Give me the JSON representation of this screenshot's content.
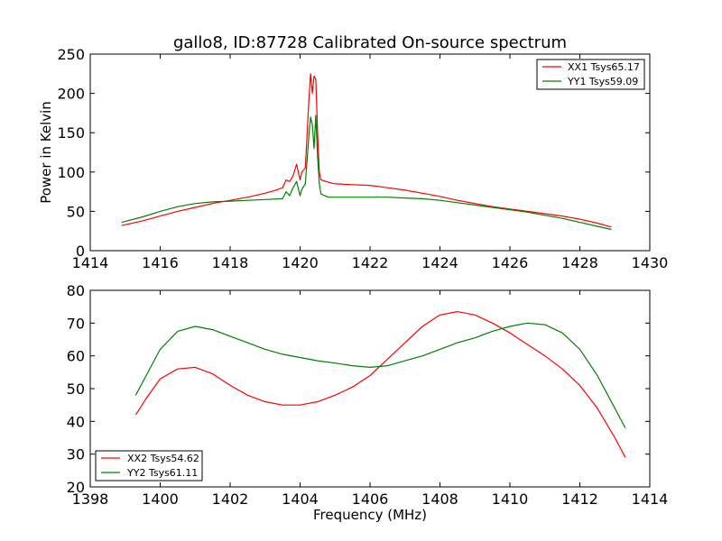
{
  "figure": {
    "title": "gallo8, ID:87728 Calibrated On-source spectrum",
    "colors": {
      "red": "#ff0000",
      "green": "#008000",
      "axes": "#000000",
      "background": "#ffffff"
    }
  },
  "chart_data": [
    {
      "type": "line",
      "title": "gallo8, ID:87728 Calibrated On-source spectrum",
      "xlabel": "",
      "ylabel": "Power in Kelvin",
      "xlim": [
        1414,
        1430
      ],
      "ylim": [
        0,
        250
      ],
      "xticks": [
        1414,
        1416,
        1418,
        1420,
        1422,
        1424,
        1426,
        1428,
        1430
      ],
      "yticks": [
        0,
        50,
        100,
        150,
        200,
        250
      ],
      "grid": false,
      "legend_position": "top-right",
      "series": [
        {
          "name": "XX1 Tsys65.17",
          "color": "#ff0000",
          "points": [
            [
              1414.9,
              32
            ],
            [
              1415.5,
              38
            ],
            [
              1416.0,
              44
            ],
            [
              1416.5,
              50
            ],
            [
              1417.0,
              55
            ],
            [
              1417.5,
              60
            ],
            [
              1418.0,
              64
            ],
            [
              1418.5,
              68
            ],
            [
              1419.0,
              73
            ],
            [
              1419.3,
              77
            ],
            [
              1419.5,
              80
            ],
            [
              1419.6,
              90
            ],
            [
              1419.7,
              88
            ],
            [
              1419.8,
              95
            ],
            [
              1419.9,
              110
            ],
            [
              1420.0,
              90
            ],
            [
              1420.05,
              100
            ],
            [
              1420.15,
              105
            ],
            [
              1420.25,
              190
            ],
            [
              1420.3,
              225
            ],
            [
              1420.35,
              200
            ],
            [
              1420.4,
              222
            ],
            [
              1420.45,
              218
            ],
            [
              1420.5,
              150
            ],
            [
              1420.55,
              100
            ],
            [
              1420.6,
              90
            ],
            [
              1420.8,
              87
            ],
            [
              1421.0,
              85
            ],
            [
              1421.5,
              84
            ],
            [
              1422.0,
              83
            ],
            [
              1422.5,
              80
            ],
            [
              1423.0,
              77
            ],
            [
              1423.5,
              73
            ],
            [
              1424.0,
              69
            ],
            [
              1424.5,
              64
            ],
            [
              1425.0,
              60
            ],
            [
              1425.5,
              56
            ],
            [
              1426.0,
              53
            ],
            [
              1426.5,
              50
            ],
            [
              1427.0,
              47
            ],
            [
              1427.5,
              44
            ],
            [
              1428.0,
              40
            ],
            [
              1428.5,
              35
            ],
            [
              1428.9,
              30
            ]
          ]
        },
        {
          "name": "YY1 Tsys59.09",
          "color": "#008000",
          "points": [
            [
              1414.9,
              36
            ],
            [
              1415.5,
              43
            ],
            [
              1416.0,
              50
            ],
            [
              1416.5,
              56
            ],
            [
              1417.0,
              60
            ],
            [
              1417.5,
              62
            ],
            [
              1418.0,
              63
            ],
            [
              1418.5,
              64
            ],
            [
              1419.0,
              65
            ],
            [
              1419.5,
              66
            ],
            [
              1419.6,
              75
            ],
            [
              1419.7,
              70
            ],
            [
              1419.8,
              80
            ],
            [
              1419.9,
              88
            ],
            [
              1420.0,
              70
            ],
            [
              1420.05,
              78
            ],
            [
              1420.15,
              85
            ],
            [
              1420.25,
              145
            ],
            [
              1420.3,
              170
            ],
            [
              1420.35,
              160
            ],
            [
              1420.4,
              130
            ],
            [
              1420.45,
              172
            ],
            [
              1420.5,
              120
            ],
            [
              1420.55,
              85
            ],
            [
              1420.6,
              72
            ],
            [
              1420.8,
              68
            ],
            [
              1421.0,
              68
            ],
            [
              1421.5,
              68
            ],
            [
              1422.0,
              68
            ],
            [
              1422.5,
              68
            ],
            [
              1423.0,
              67
            ],
            [
              1423.5,
              66
            ],
            [
              1424.0,
              64
            ],
            [
              1424.5,
              61
            ],
            [
              1425.0,
              58
            ],
            [
              1425.5,
              55
            ],
            [
              1426.0,
              52
            ],
            [
              1426.5,
              49
            ],
            [
              1427.0,
              45
            ],
            [
              1427.5,
              41
            ],
            [
              1428.0,
              36
            ],
            [
              1428.5,
              31
            ],
            [
              1428.9,
              27
            ]
          ]
        }
      ]
    },
    {
      "type": "line",
      "title": "",
      "xlabel": "Frequency (MHz)",
      "ylabel": "",
      "xlim": [
        1398,
        1414
      ],
      "ylim": [
        20,
        80
      ],
      "xticks": [
        1398,
        1400,
        1402,
        1404,
        1406,
        1408,
        1410,
        1412,
        1414
      ],
      "yticks": [
        20,
        30,
        40,
        50,
        60,
        70,
        80
      ],
      "grid": false,
      "legend_position": "bottom-left",
      "series": [
        {
          "name": "XX2 Tsys54.62",
          "color": "#ff0000",
          "points": [
            [
              1399.3,
              42
            ],
            [
              1399.6,
              47
            ],
            [
              1400.0,
              53
            ],
            [
              1400.5,
              56
            ],
            [
              1401.0,
              56.5
            ],
            [
              1401.5,
              54.5
            ],
            [
              1402.0,
              51
            ],
            [
              1402.5,
              48
            ],
            [
              1403.0,
              46
            ],
            [
              1403.5,
              45
            ],
            [
              1404.0,
              45
            ],
            [
              1404.5,
              46
            ],
            [
              1405.0,
              48
            ],
            [
              1405.5,
              50.5
            ],
            [
              1406.0,
              54
            ],
            [
              1406.5,
              59
            ],
            [
              1407.0,
              64
            ],
            [
              1407.5,
              69
            ],
            [
              1408.0,
              72.5
            ],
            [
              1408.5,
              73.5
            ],
            [
              1409.0,
              72.5
            ],
            [
              1409.5,
              70
            ],
            [
              1410.0,
              67
            ],
            [
              1410.5,
              63.5
            ],
            [
              1411.0,
              60
            ],
            [
              1411.5,
              56
            ],
            [
              1412.0,
              51
            ],
            [
              1412.5,
              44
            ],
            [
              1413.0,
              35
            ],
            [
              1413.3,
              29
            ]
          ]
        },
        {
          "name": "YY2 Tsys61.11",
          "color": "#008000",
          "points": [
            [
              1399.3,
              48
            ],
            [
              1399.6,
              54
            ],
            [
              1400.0,
              62
            ],
            [
              1400.5,
              67.5
            ],
            [
              1401.0,
              69
            ],
            [
              1401.5,
              68
            ],
            [
              1402.0,
              66
            ],
            [
              1402.5,
              64
            ],
            [
              1403.0,
              62
            ],
            [
              1403.5,
              60.5
            ],
            [
              1404.0,
              59.5
            ],
            [
              1404.5,
              58.5
            ],
            [
              1405.0,
              57.8
            ],
            [
              1405.5,
              57
            ],
            [
              1406.0,
              56.5
            ],
            [
              1406.5,
              57
            ],
            [
              1407.0,
              58.5
            ],
            [
              1407.5,
              60
            ],
            [
              1408.0,
              62
            ],
            [
              1408.5,
              64
            ],
            [
              1409.0,
              65.5
            ],
            [
              1409.5,
              67.5
            ],
            [
              1410.0,
              69
            ],
            [
              1410.5,
              70
            ],
            [
              1411.0,
              69.5
            ],
            [
              1411.5,
              67
            ],
            [
              1412.0,
              62
            ],
            [
              1412.5,
              54
            ],
            [
              1413.0,
              44
            ],
            [
              1413.3,
              38
            ]
          ]
        }
      ]
    }
  ]
}
